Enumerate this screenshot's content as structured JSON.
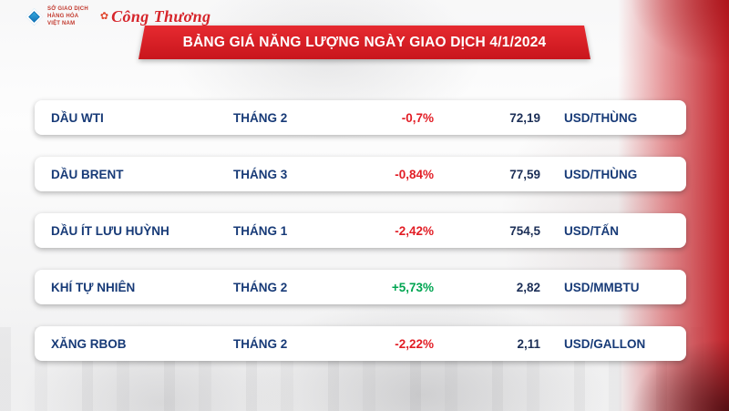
{
  "brand": {
    "exchange_lines": [
      "SỞ GIAO DỊCH",
      "HÀNG HÓA",
      "VIỆT NAM"
    ],
    "newspaper": "Công Thương"
  },
  "header": {
    "title": "BẢNG GIÁ NĂNG LƯỢNG NGÀY GIAO DỊCH 4/1/2024"
  },
  "chart_data": {
    "type": "table",
    "title": "BẢNG GIÁ NĂNG LƯỢNG NGÀY GIAO DỊCH 4/1/2024",
    "rows": [
      {
        "name": "DẦU WTI",
        "month": "THÁNG 2",
        "change": "-0,7%",
        "direction": "down",
        "value": "72,19",
        "unit": "USD/THÙNG"
      },
      {
        "name": "DẦU BRENT",
        "month": "THÁNG 3",
        "change": "-0,84%",
        "direction": "down",
        "value": "77,59",
        "unit": "USD/THÙNG"
      },
      {
        "name": "DẦU ÍT LƯU HUỲNH",
        "month": "THÁNG 1",
        "change": "-2,42%",
        "direction": "down",
        "value": "754,5",
        "unit": "USD/TẤN"
      },
      {
        "name": "KHÍ TỰ NHIÊN",
        "month": "THÁNG 2",
        "change": "+5,73%",
        "direction": "up",
        "value": "2,82",
        "unit": "USD/MMBTU"
      },
      {
        "name": "XĂNG RBOB",
        "month": "THÁNG 2",
        "change": "-2,22%",
        "direction": "down",
        "value": "2,11",
        "unit": "USD/GALLON"
      }
    ]
  },
  "colors": {
    "down": "#e21d25",
    "up": "#00a551",
    "navy": "#173a77",
    "banner": "#d6191f"
  }
}
